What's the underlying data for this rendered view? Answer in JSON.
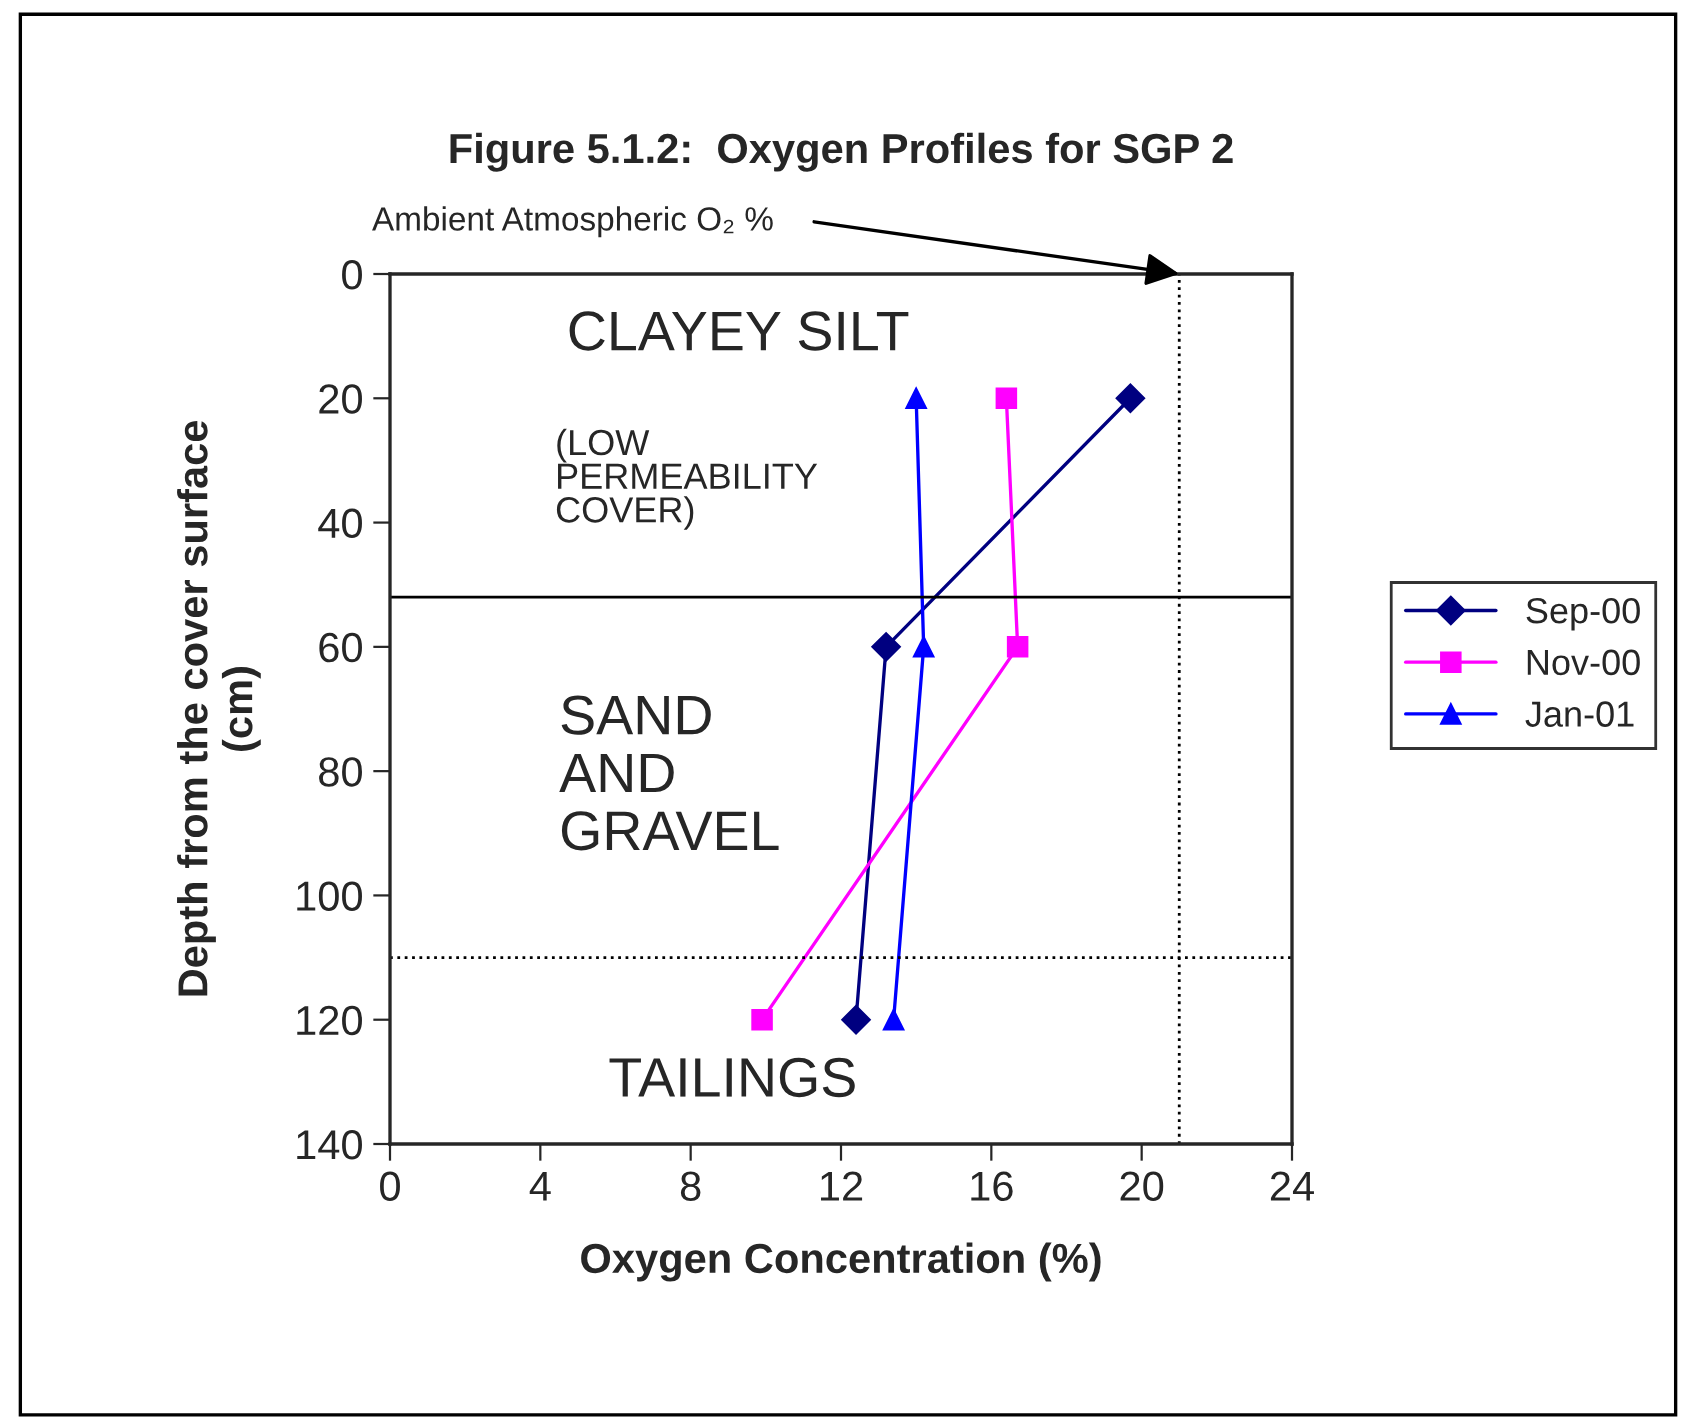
{
  "chart_data": {
    "type": "line",
    "title": "Figure 5.1.2:  Oxygen Profiles for SGP 2",
    "xlabel": "Oxygen Concentration (%)",
    "ylabel": "Depth from the cover surface\n(cm)",
    "series": [
      {
        "name": "Sep-00",
        "color": "#000080",
        "marker": "diamond",
        "x": [
          19.7,
          13.2,
          12.4
        ],
        "values": [
          20,
          60,
          120
        ]
      },
      {
        "name": "Nov-00",
        "color": "#ff00ff",
        "marker": "square",
        "x": [
          16.4,
          16.7,
          9.9
        ],
        "values": [
          20,
          60,
          120
        ]
      },
      {
        "name": "Jan-01",
        "color": "#0000ff",
        "marker": "triangle",
        "x": [
          14.0,
          14.2,
          13.4
        ],
        "values": [
          20,
          60,
          120
        ]
      }
    ],
    "xlim": [
      0,
      24
    ],
    "xticks": [
      0,
      4,
      8,
      12,
      16,
      20,
      24
    ],
    "ylim": [
      140,
      0
    ],
    "yticks": [
      0,
      20,
      40,
      60,
      80,
      100,
      120,
      140
    ],
    "ref_lines": [
      {
        "axis": "x",
        "value": 21,
        "color": "#000000",
        "line_style": "dotted"
      },
      {
        "axis": "y",
        "value": 52,
        "color": "#000000",
        "line_style": "solid"
      },
      {
        "axis": "y",
        "value": 110,
        "color": "#000000",
        "line_style": "dotted"
      }
    ],
    "annotations": [
      {
        "text": "Ambient Atmospheric O₂ %",
        "x": 21,
        "y": 0
      },
      "CLAYEY SILT",
      "(LOW\nPERMEABILITY\nCOVER)",
      "SAND\nAND\nGRAVEL",
      "TAILINGS"
    ],
    "grid": false,
    "legend": "right",
    "line_style": "solid"
  }
}
